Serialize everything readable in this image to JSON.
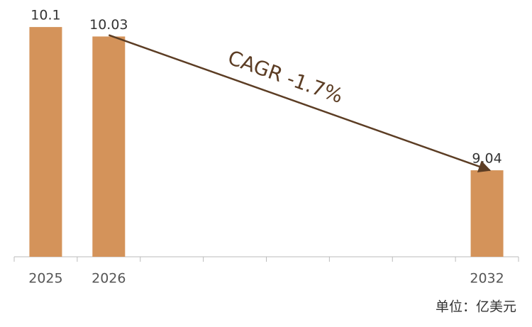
{
  "chart_data": {
    "type": "bar",
    "categories": [
      "2025",
      "2026",
      null,
      null,
      null,
      null,
      null,
      "2032"
    ],
    "values": [
      10.1,
      10.03,
      null,
      null,
      null,
      null,
      null,
      9.04
    ],
    "color": "#d4935a",
    "ylim": [
      8.4,
      10.3
    ],
    "annotation": "CAGR -1.7%",
    "unit_note": "单位：亿美元"
  }
}
